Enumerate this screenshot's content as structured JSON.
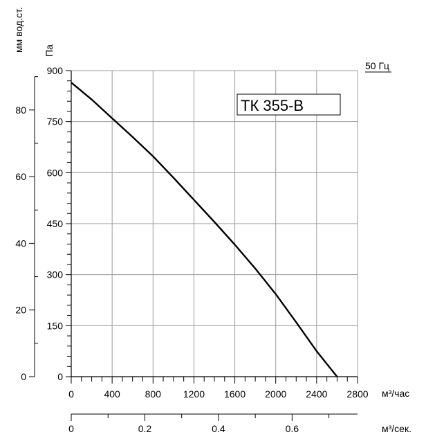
{
  "chart_data": {
    "type": "line",
    "title": "ТК 355-В",
    "frequency_label": "50 Гц",
    "x": {
      "unit": "м³/час",
      "ticks": [
        0,
        400,
        800,
        1200,
        1600,
        2000,
        2400,
        2800
      ],
      "range": [
        0,
        2800
      ]
    },
    "x_secondary": {
      "unit": "м³/сек.",
      "ticks": [
        0,
        0.2,
        0.4,
        0.6
      ],
      "tick_labels": [
        "0",
        "0.2",
        "0.4",
        "0.6"
      ],
      "range": [
        0,
        0.7778
      ]
    },
    "y": {
      "unit": "Па",
      "ticks": [
        0,
        150,
        300,
        450,
        600,
        750,
        900
      ],
      "range": [
        0,
        900
      ]
    },
    "y_secondary": {
      "unit": "мм вод.ст.",
      "ticks": [
        0,
        20,
        40,
        60,
        80
      ],
      "range": [
        0,
        91.8
      ]
    },
    "grid": true,
    "series": [
      {
        "points": [
          [
            0,
            865
          ],
          [
            200,
            815
          ],
          [
            400,
            760
          ],
          [
            600,
            705
          ],
          [
            800,
            648
          ],
          [
            1000,
            585
          ],
          [
            1200,
            520
          ],
          [
            1400,
            455
          ],
          [
            1600,
            388
          ],
          [
            1800,
            318
          ],
          [
            2000,
            243
          ],
          [
            2200,
            160
          ],
          [
            2400,
            75
          ],
          [
            2600,
            0
          ]
        ]
      }
    ]
  }
}
